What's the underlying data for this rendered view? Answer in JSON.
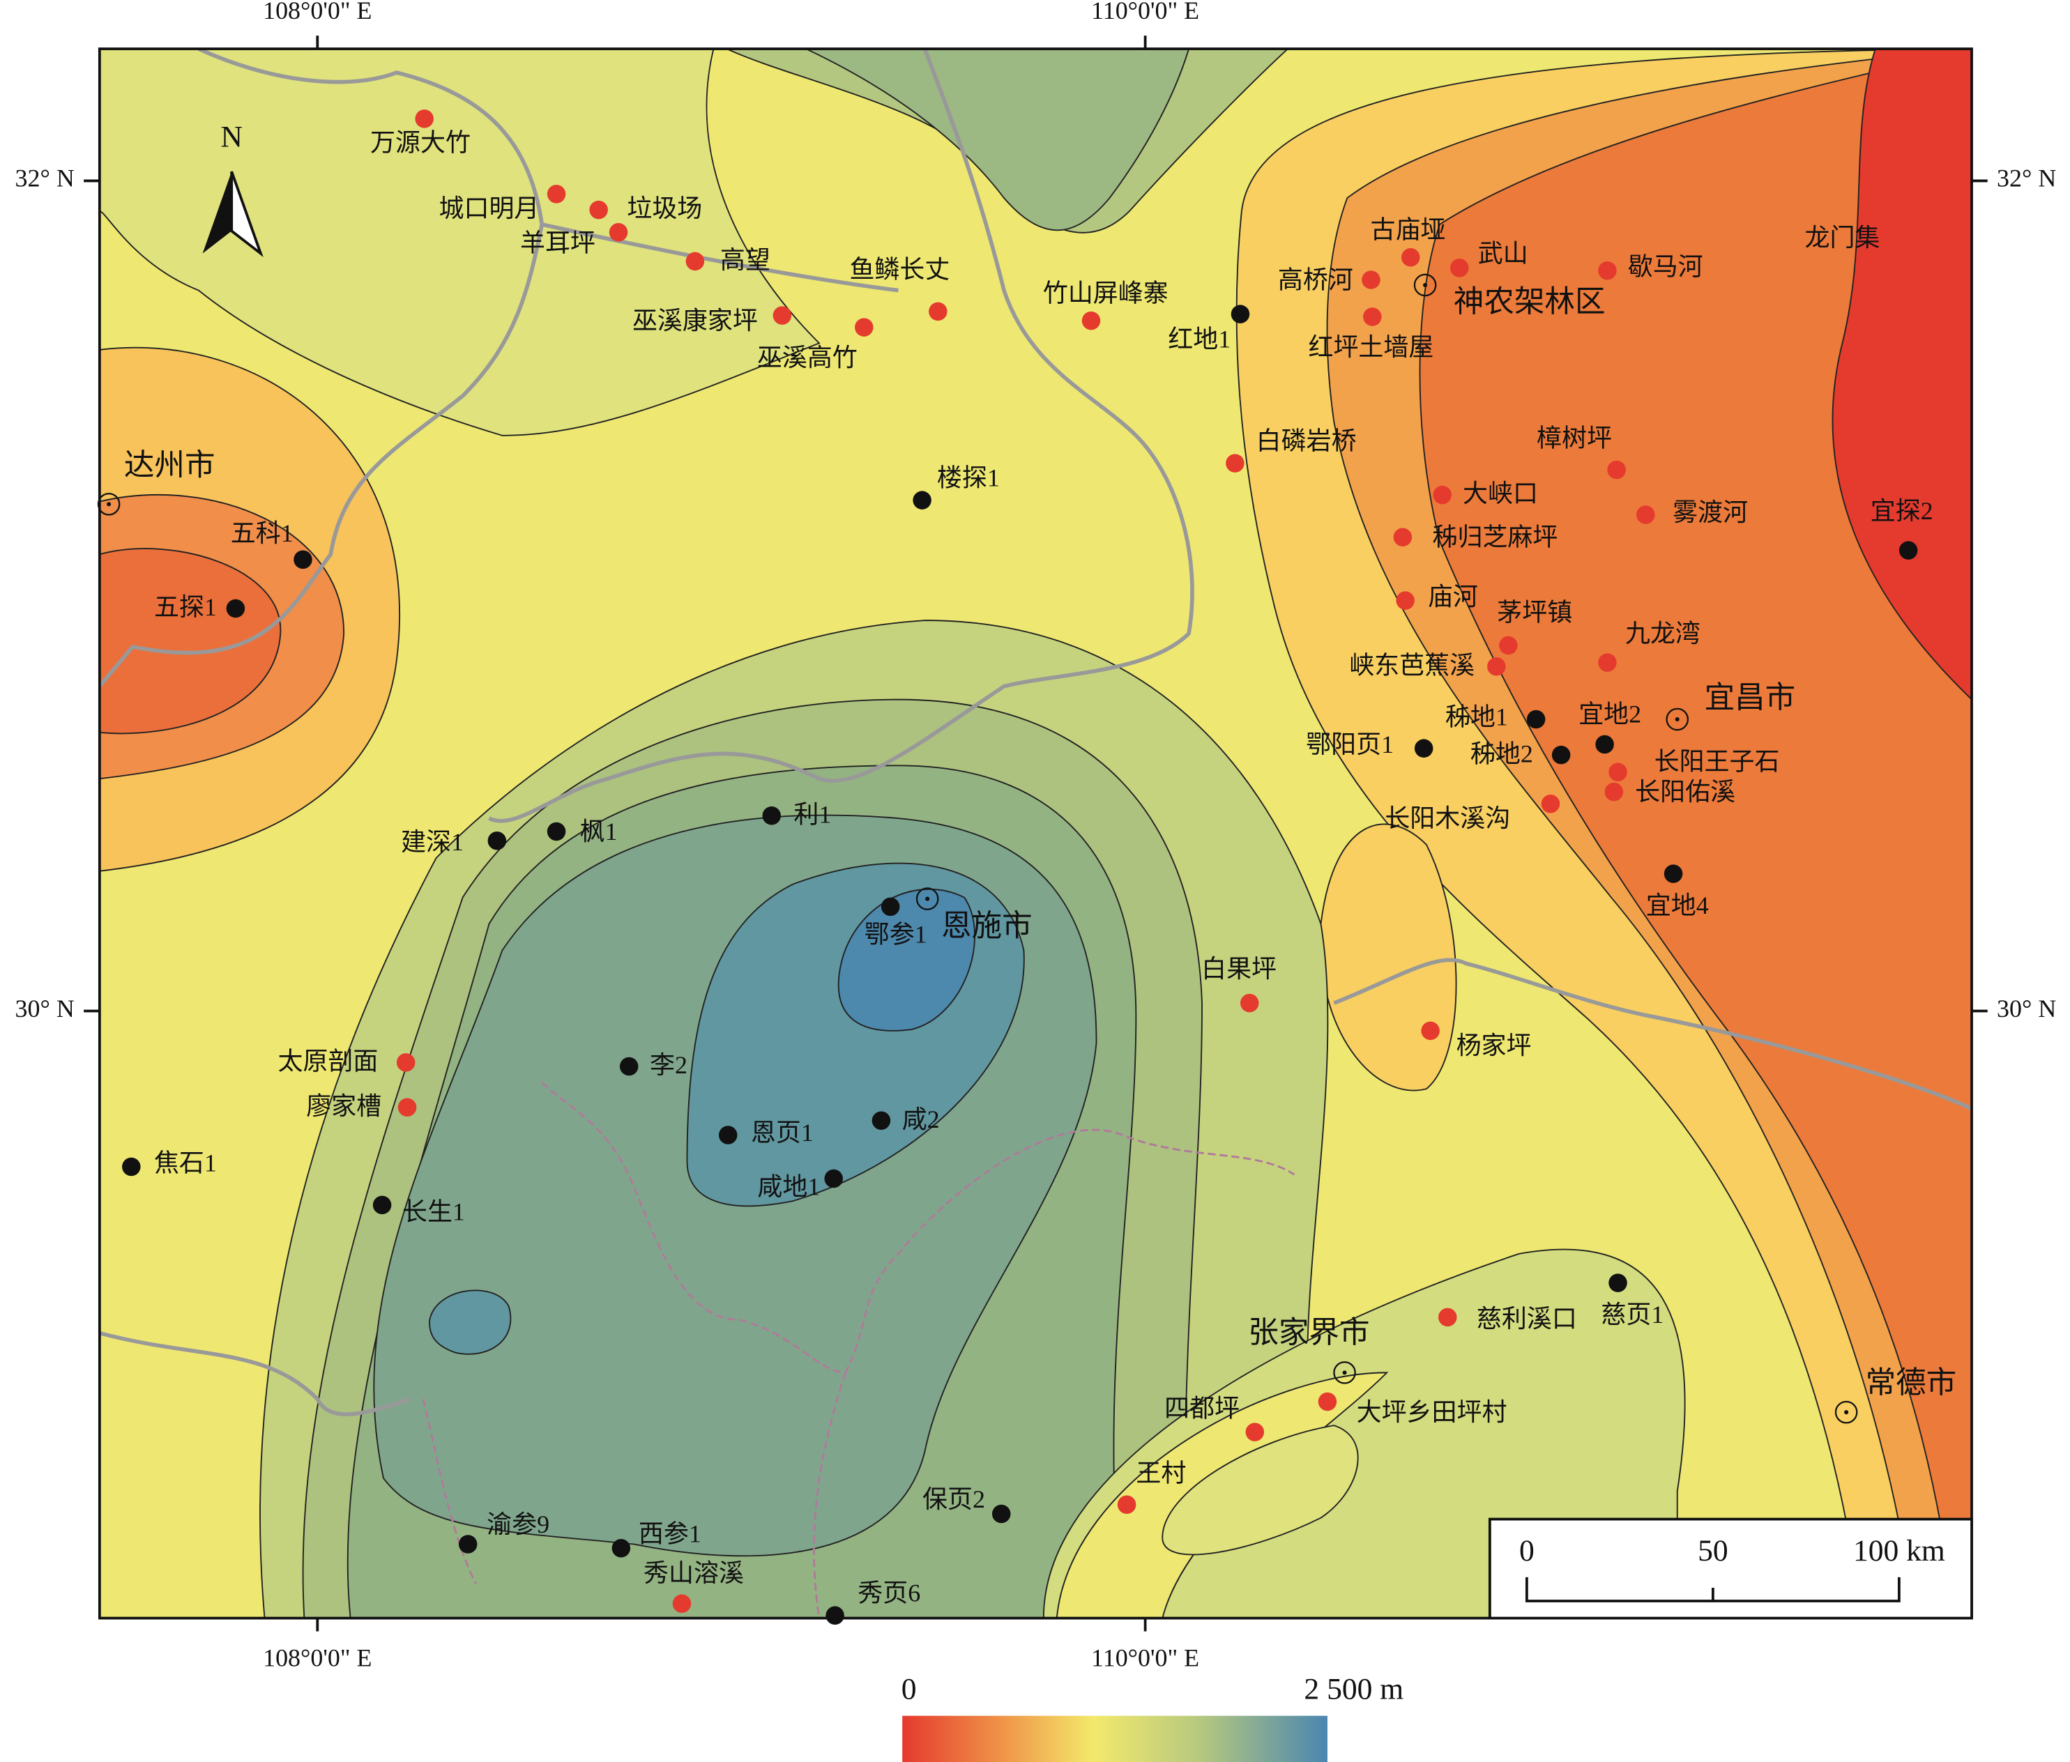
{
  "axes": {
    "x_top": [
      "108°0'0\" E",
      "110°0'0\" E"
    ],
    "x_bottom": [
      "108°0'0\" E",
      "110°0'0\" E"
    ],
    "y_left": [
      "32° N",
      "30° N"
    ],
    "y_right": [
      "32° N",
      "30° N"
    ]
  },
  "north": "N",
  "cities": [
    "达州市",
    "神农架林区",
    "宜昌市",
    "恩施市",
    "张家界市",
    "常德市"
  ],
  "sample_points": [
    "万源大竹",
    "城口明月",
    "垃圾场",
    "羊耳坪",
    "高望",
    "巫溪康家坪",
    "巫溪高竹",
    "鱼鳞长丈",
    "竹山屏峰寨",
    "古庙垭",
    "武山",
    "歇马河",
    "龙门集",
    "高桥河",
    "红坪土墙屋",
    "白磷岩桥",
    "樟树坪",
    "大峡口",
    "雾渡河",
    "秭归芝麻坪",
    "庙河",
    "茅坪镇",
    "九龙湾",
    "峡东芭蕉溪",
    "长阳王子石",
    "长阳佑溪",
    "长阳木溪沟",
    "白果坪",
    "杨家坪",
    "太原剖面",
    "廖家槽",
    "慈利溪口",
    "大坪乡田坪村",
    "四都坪",
    "王村",
    "秀山溶溪"
  ],
  "wells": [
    "红地1",
    "楼探1",
    "五科1",
    "五探1",
    "宜探2",
    "秭地1",
    "宜地2",
    "秭地2",
    "鄂阳页1",
    "宜地4",
    "利1",
    "枫1",
    "建深1",
    "鄂参1",
    "李2",
    "恩页1",
    "咸2",
    "咸地1",
    "焦石1",
    "长生1",
    "慈页1",
    "保页2",
    "渝参9",
    "西参1",
    "秀页6"
  ],
  "scale_bar": {
    "labels": [
      "0",
      "50",
      "100 km"
    ]
  },
  "legend": {
    "min": "0",
    "max": "2 500 m"
  }
}
